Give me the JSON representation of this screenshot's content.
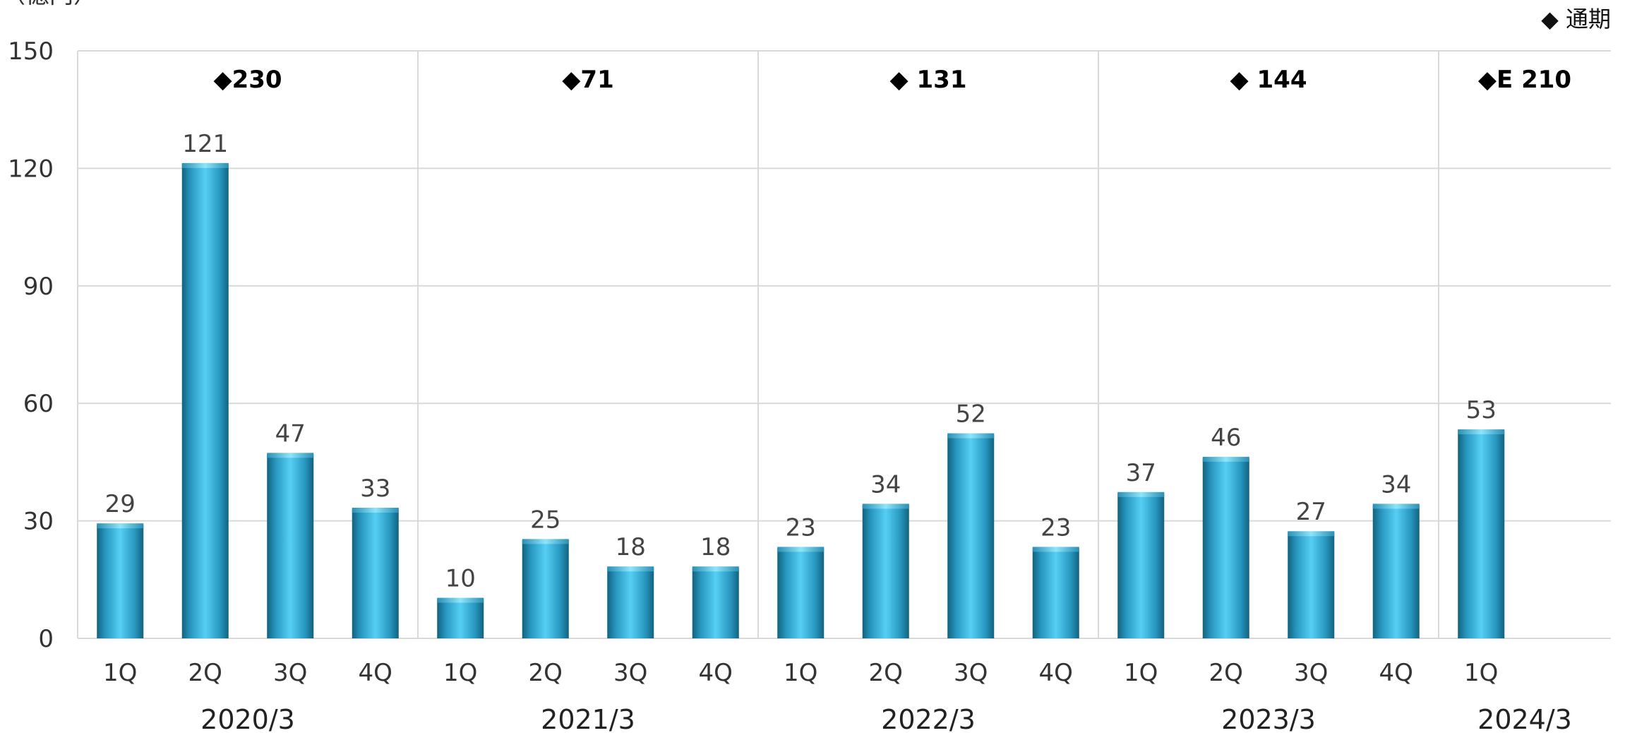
{
  "chart_data": {
    "type": "bar",
    "y_unit_label": "（億円）",
    "ylim": [
      0,
      150
    ],
    "yticks": [
      0,
      30,
      60,
      90,
      120,
      150
    ],
    "grid": true,
    "legend": {
      "text": "◆ 通期",
      "placement": "top-right"
    },
    "bar_color": "#3BB6E3",
    "years": [
      {
        "label": "2020/3",
        "annual": "◆230",
        "quarters": [
          "1Q",
          "2Q",
          "3Q",
          "4Q"
        ],
        "values": [
          29,
          121,
          47,
          33
        ]
      },
      {
        "label": "2021/3",
        "annual": "◆71",
        "quarters": [
          "1Q",
          "2Q",
          "3Q",
          "4Q"
        ],
        "values": [
          10,
          25,
          18,
          18
        ]
      },
      {
        "label": "2022/3",
        "annual": "◆ 131",
        "quarters": [
          "1Q",
          "2Q",
          "3Q",
          "4Q"
        ],
        "values": [
          23,
          34,
          52,
          23
        ]
      },
      {
        "label": "2023/3",
        "annual": "◆ 144",
        "quarters": [
          "1Q",
          "2Q",
          "3Q",
          "4Q"
        ],
        "values": [
          37,
          46,
          27,
          34
        ]
      },
      {
        "label": "2024/3",
        "annual": "◆E 210",
        "quarters": [
          "1Q"
        ],
        "values": [
          53
        ]
      }
    ]
  }
}
